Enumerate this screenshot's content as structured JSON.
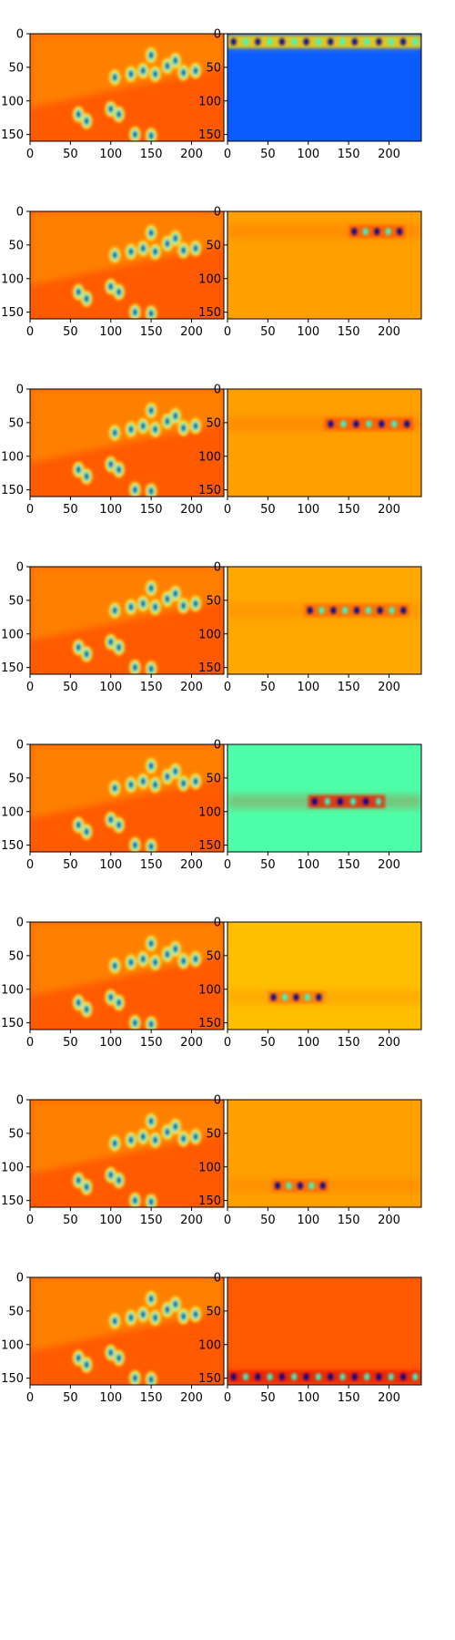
{
  "colors": {
    "jet_dark_blue": "#0000a0",
    "jet_blue": "#0a5cff",
    "jet_cyan": "#31ffd0",
    "jet_green": "#4dffa8",
    "jet_yellow": "#ffd400",
    "jet_orange": "#ff9f00",
    "jet_red_orange": "#ff5a00",
    "jet_red": "#ee2000"
  },
  "chart_data": {
    "type": "heatmap",
    "layout": {
      "rows": 8,
      "cols": 2
    },
    "image_extent": {
      "x": [
        0,
        240
      ],
      "y": [
        160,
        0
      ]
    },
    "x_ticks": [
      0,
      50,
      100,
      150,
      200
    ],
    "y_ticks": [
      0,
      50,
      100,
      150
    ],
    "x_tick_labels": [
      "0",
      "50",
      "100",
      "150",
      "200"
    ],
    "y_tick_labels": [
      "0",
      "50",
      "100",
      "150"
    ],
    "colormap": "jet",
    "left_panels": {
      "description_base_color": "#ff7a00",
      "hotspots": [
        {
          "x": 105,
          "y": 65
        },
        {
          "x": 125,
          "y": 60
        },
        {
          "x": 140,
          "y": 55
        },
        {
          "x": 155,
          "y": 60
        },
        {
          "x": 150,
          "y": 32
        },
        {
          "x": 170,
          "y": 48
        },
        {
          "x": 180,
          "y": 40
        },
        {
          "x": 190,
          "y": 58
        },
        {
          "x": 205,
          "y": 55
        },
        {
          "x": 60,
          "y": 120
        },
        {
          "x": 70,
          "y": 130
        },
        {
          "x": 100,
          "y": 112
        },
        {
          "x": 110,
          "y": 120
        },
        {
          "x": 130,
          "y": 150
        },
        {
          "x": 150,
          "y": 152
        }
      ]
    },
    "right_panels": [
      {
        "row": 1,
        "background": "#0a5cff",
        "band_y": 12,
        "band_range": [
          0,
          240
        ],
        "band_color": "#ffd400"
      },
      {
        "row": 2,
        "background": "#ffa000",
        "band_y": 30,
        "band_range": [
          150,
          220
        ],
        "band_color": "#ff5a00"
      },
      {
        "row": 3,
        "background": "#ffa000",
        "band_y": 52,
        "band_range": [
          120,
          230
        ],
        "band_color": "#ff5a00"
      },
      {
        "row": 4,
        "background": "#ffa800",
        "band_y": 65,
        "band_range": [
          95,
          225
        ],
        "band_color": "#ff6a00"
      },
      {
        "row": 5,
        "background": "#4dffa8",
        "band_y": 85,
        "band_range": [
          100,
          195
        ],
        "band_color": "#ee2000"
      },
      {
        "row": 6,
        "background": "#ffbe00",
        "band_y": 112,
        "band_range": [
          50,
          120
        ],
        "band_color": "#ff7a00"
      },
      {
        "row": 7,
        "background": "#ffa000",
        "band_y": 128,
        "band_range": [
          55,
          125
        ],
        "band_color": "#ff6a00"
      },
      {
        "row": 8,
        "background": "#ff5a00",
        "band_y": 148,
        "band_range": [
          0,
          240
        ],
        "band_color": "#ee2000"
      }
    ]
  }
}
